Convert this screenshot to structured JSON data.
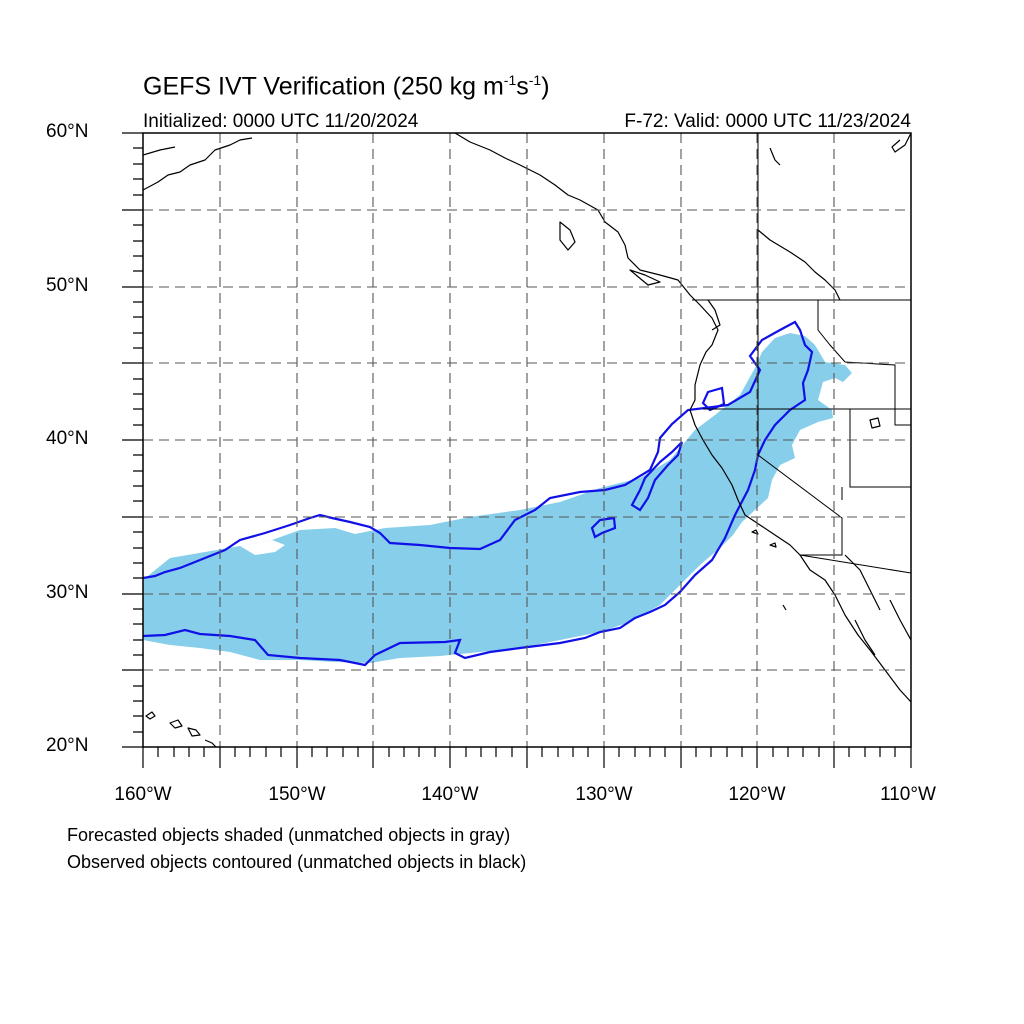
{
  "title": {
    "main": "GEFS IVT Verification (250 kg m",
    "exp1": "-1",
    "mid": "s",
    "exp2": "-1",
    "close": ")"
  },
  "initialized": "Initialized: 0000 UTC 11/20/2024",
  "valid": "F-72: Valid: 0000 UTC 11/23/2024",
  "lat_labels": [
    "60°N",
    "50°N",
    "40°N",
    "30°N",
    "20°N"
  ],
  "lon_labels": [
    "160°W",
    "150°W",
    "140°W",
    "130°W",
    "120°W",
    "110°W"
  ],
  "footnotes": {
    "forecast": "Forecasted objects shaded (unmatched objects in gray)",
    "observed": "Observed objects contoured (unmatched objects in black)"
  },
  "map_data": {
    "extent": {
      "lon": [
        -160,
        -110
      ],
      "lat": [
        20,
        60
      ]
    },
    "grid_spacing_deg": 5,
    "colors": {
      "forecast_fill": "#87ceeb",
      "observed_contour": "#1010e8",
      "coastline": "#000000",
      "gridline": "#555555"
    }
  }
}
